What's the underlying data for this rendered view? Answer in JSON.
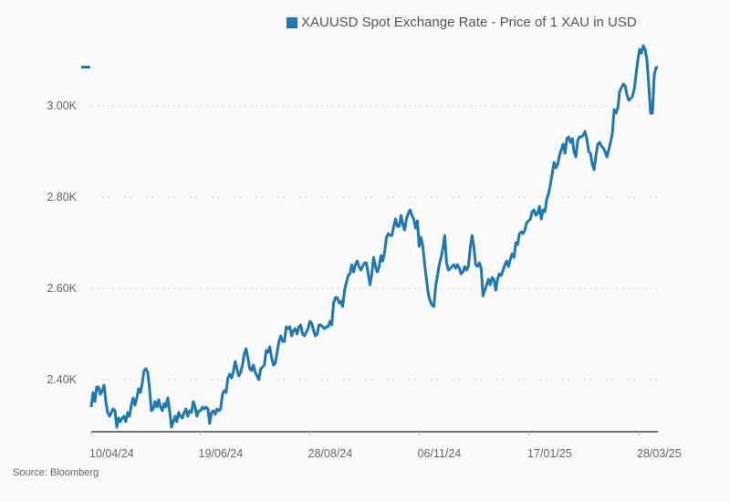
{
  "chart_data": {
    "type": "line",
    "title": "",
    "xlabel": "",
    "ylabel": "",
    "ylim": [
      2286,
      3150
    ],
    "grid": true,
    "legend_position": "top-right",
    "y_ticks": [
      {
        "value": 2400,
        "label": "2.40K"
      },
      {
        "value": 2600,
        "label": "2.60K"
      },
      {
        "value": 2800,
        "label": "2.80K"
      },
      {
        "value": 3000,
        "label": "3.00K"
      }
    ],
    "x_ticks": [
      "10/04/24",
      "19/06/24",
      "28/08/24",
      "06/11/24",
      "17/01/25",
      "28/03/25"
    ],
    "x_start": "10/04/24",
    "x_end": "03/04/25",
    "series": [
      {
        "name": "XAUUSD Spot Exchange Rate - Price of 1 XAU in USD",
        "color": "#1f77b4",
        "values": [
          2340,
          2372,
          2352,
          2384,
          2384,
          2368,
          2376,
          2388,
          2352,
          2328,
          2320,
          2328,
          2336,
          2332,
          2296,
          2316,
          2308,
          2316,
          2320,
          2308,
          2328,
          2320,
          2344,
          2360,
          2344,
          2360,
          2380,
          2372,
          2392,
          2420,
          2424,
          2416,
          2380,
          2332,
          2336,
          2352,
          2340,
          2356,
          2340,
          2332,
          2348,
          2340,
          2360,
          2332,
          2296,
          2308,
          2320,
          2308,
          2328,
          2320,
          2316,
          2328,
          2336,
          2320,
          2332,
          2328,
          2352,
          2340,
          2320,
          2332,
          2332,
          2340,
          2336,
          2340,
          2336,
          2304,
          2328,
          2332,
          2324,
          2336,
          2332,
          2336,
          2368,
          2376,
          2372,
          2404,
          2412,
          2404,
          2416,
          2440,
          2424,
          2408,
          2416,
          2432,
          2456,
          2468,
          2448,
          2424,
          2420,
          2432,
          2416,
          2408,
          2400,
          2424,
          2428,
          2432,
          2464,
          2460,
          2472,
          2448,
          2432,
          2436,
          2460,
          2484,
          2496,
          2484,
          2484,
          2516,
          2512,
          2516,
          2496,
          2508,
          2512,
          2500,
          2516,
          2520,
          2500,
          2496,
          2504,
          2512,
          2528,
          2524,
          2508,
          2496,
          2500,
          2520,
          2520,
          2516,
          2512,
          2516,
          2516,
          2528,
          2520,
          2568,
          2580,
          2580,
          2568,
          2572,
          2560,
          2596,
          2612,
          2628,
          2632,
          2652,
          2636,
          2652,
          2660,
          2648,
          2640,
          2648,
          2656,
          2656,
          2632,
          2608,
          2632,
          2668,
          2648,
          2636,
          2648,
          2672,
          2660,
          2680,
          2712,
          2720,
          2716,
          2716,
          2736,
          2752,
          2736,
          2736,
          2760,
          2740,
          2728,
          2752,
          2764,
          2772,
          2760,
          2752,
          2732,
          2748,
          2692,
          2712,
          2692,
          2652,
          2620,
          2588,
          2572,
          2564,
          2560,
          2604,
          2628,
          2652,
          2668,
          2688,
          2716,
          2656,
          2640,
          2644,
          2648,
          2652,
          2644,
          2652,
          2644,
          2632,
          2636,
          2648,
          2640,
          2648,
          2688,
          2716,
          2692,
          2652,
          2648,
          2656,
          2644,
          2584,
          2596,
          2608,
          2620,
          2608,
          2624,
          2620,
          2596,
          2620,
          2632,
          2628,
          2640,
          2652,
          2660,
          2648,
          2664,
          2676,
          2668,
          2700,
          2696,
          2720,
          2724,
          2720,
          2728,
          2744,
          2748,
          2752,
          2768,
          2772,
          2760,
          2764,
          2780,
          2752,
          2772,
          2768,
          2796,
          2808,
          2828,
          2852,
          2876,
          2864,
          2872,
          2892,
          2904,
          2916,
          2896,
          2928,
          2932,
          2920,
          2928,
          2900,
          2888,
          2924,
          2932,
          2932,
          2936,
          2944,
          2928,
          2900,
          2896,
          2872,
          2860,
          2892,
          2916,
          2920,
          2912,
          2908,
          2900,
          2888,
          2904,
          2920,
          2940,
          2992,
          2984,
          2996,
          3032,
          3040,
          3048,
          3044,
          3024,
          3012,
          3016,
          3020,
          3036,
          3068,
          3100,
          3124,
          3116,
          3132,
          3124,
          3100,
          3044,
          2984,
          2984,
          3068,
          3084,
          3084
        ]
      }
    ]
  },
  "legend": {
    "label": "XAUUSD Spot Exchange Rate - Price of 1 XAU in USD",
    "color": "#1f77b4"
  },
  "source_note": "Source: Bloomberg"
}
